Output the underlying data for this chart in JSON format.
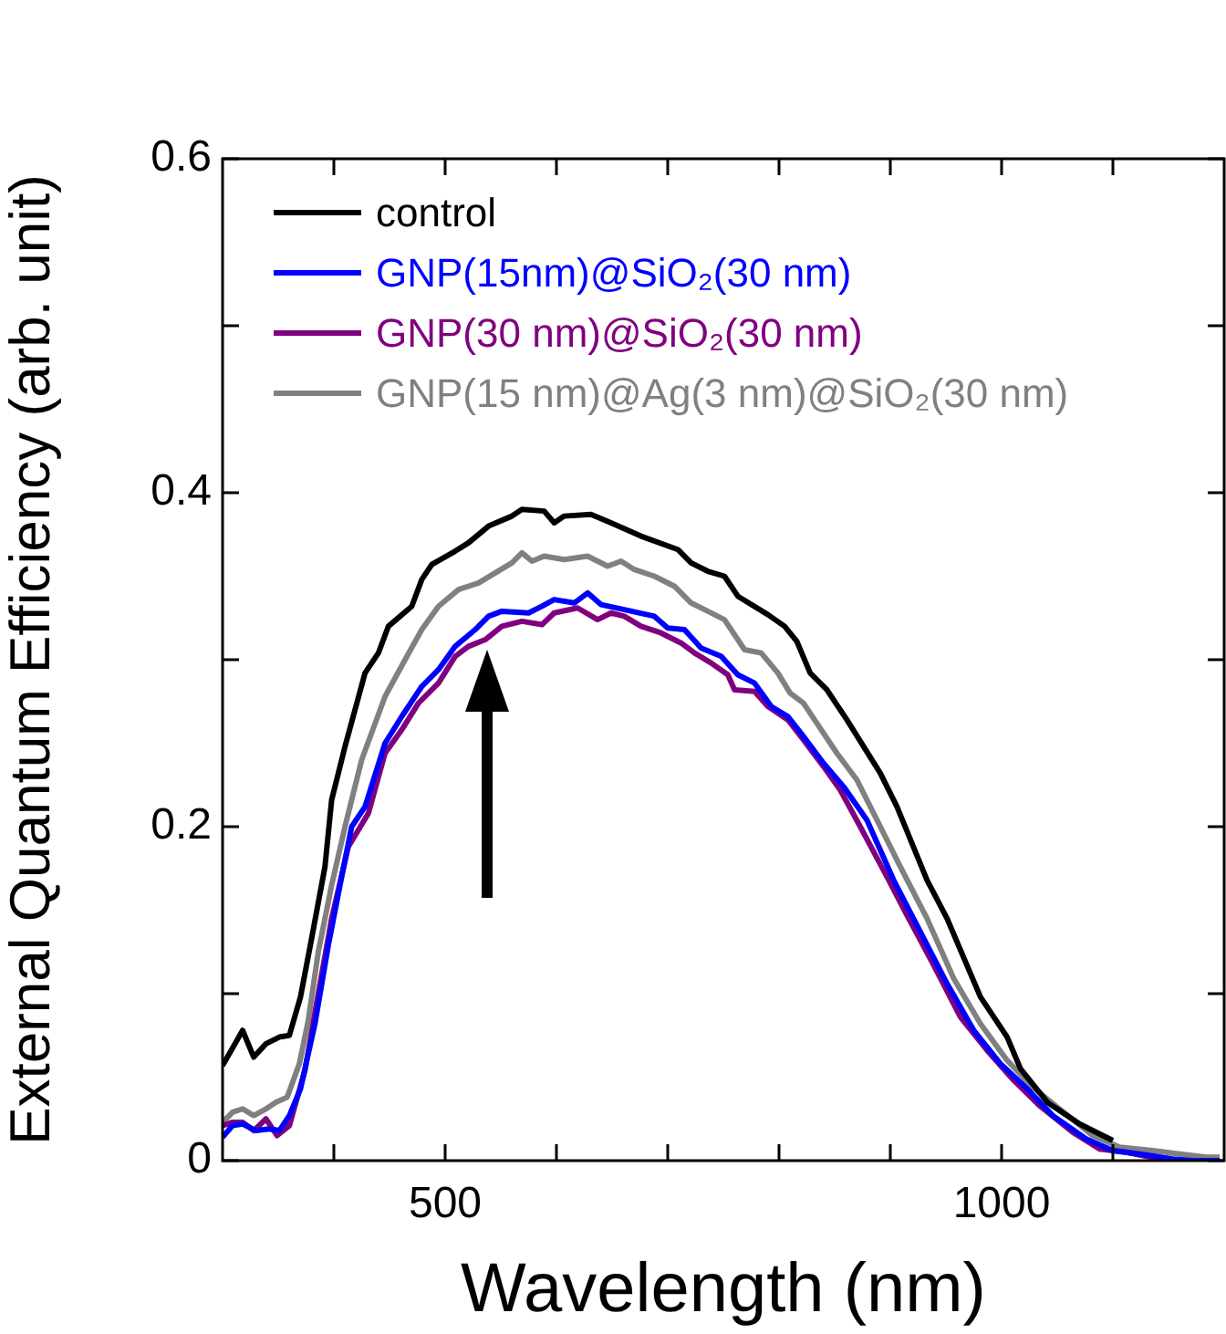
{
  "chart_data": {
    "type": "line",
    "xlabel": "Wavelength (nm)",
    "ylabel": "External Quantum Efficiency (arb. unit)",
    "xlim": [
      300,
      1200
    ],
    "ylim": [
      0,
      0.6
    ],
    "xticks": [
      {
        "value": 400,
        "label": null
      },
      500,
      {
        "value": 600,
        "label": null
      },
      {
        "value": 700,
        "label": null
      },
      {
        "value": 800,
        "label": null
      },
      {
        "value": 900,
        "label": null
      },
      1000,
      {
        "value": 1100,
        "label": null
      }
    ],
    "yticks": [
      0,
      {
        "value": 0.1,
        "label": null
      },
      0.2,
      {
        "value": 0.3,
        "label": null
      },
      0.4,
      {
        "value": 0.5,
        "label": null
      },
      0.6
    ],
    "grid": false,
    "legend": "top left",
    "marker": "none",
    "line_style": "solid",
    "series": [
      {
        "name": "control",
        "color": "#000000",
        "x": [
          300,
          318,
          328,
          339,
          351,
          360,
          370,
          380,
          392,
          398,
          410,
          428,
          440,
          449,
          470,
          479,
          488,
          509,
          521,
          539,
          560,
          569,
          589,
          598,
          607,
          631,
          649,
          676,
          709,
          721,
          736,
          751,
          763,
          790,
          805,
          816,
          828,
          843,
          861,
          876,
          891,
          906,
          933,
          951,
          981,
          1005,
          1017,
          1041,
          1070,
          1100
        ],
        "values": [
          0.057,
          0.078,
          0.062,
          0.07,
          0.074,
          0.075,
          0.098,
          0.133,
          0.176,
          0.216,
          0.248,
          0.292,
          0.304,
          0.32,
          0.332,
          0.348,
          0.357,
          0.365,
          0.37,
          0.38,
          0.386,
          0.39,
          0.389,
          0.382,
          0.386,
          0.387,
          0.382,
          0.374,
          0.366,
          0.358,
          0.353,
          0.35,
          0.338,
          0.327,
          0.32,
          0.311,
          0.292,
          0.282,
          0.264,
          0.248,
          0.232,
          0.212,
          0.168,
          0.145,
          0.098,
          0.074,
          0.055,
          0.035,
          0.022,
          0.012
        ]
      },
      {
        "name": "GNP(15nm)@SiO₂(30 nm)",
        "color": "#0000ff",
        "x": [
          300,
          309,
          318,
          330,
          342,
          351,
          360,
          370,
          383,
          395,
          407,
          416,
          428,
          446,
          461,
          479,
          494,
          509,
          527,
          539,
          551,
          575,
          587,
          598,
          616,
          628,
          640,
          661,
          688,
          700,
          715,
          730,
          748,
          763,
          778,
          793,
          808,
          822,
          840,
          858,
          879,
          903,
          927,
          951,
          975,
          999,
          1023,
          1046,
          1076,
          1100,
          1124,
          1154,
          1172,
          1196
        ],
        "values": [
          0.014,
          0.021,
          0.022,
          0.018,
          0.019,
          0.018,
          0.027,
          0.043,
          0.082,
          0.129,
          0.17,
          0.2,
          0.212,
          0.25,
          0.266,
          0.284,
          0.294,
          0.308,
          0.318,
          0.326,
          0.329,
          0.328,
          0.332,
          0.336,
          0.334,
          0.34,
          0.333,
          0.33,
          0.326,
          0.319,
          0.318,
          0.307,
          0.302,
          0.291,
          0.286,
          0.272,
          0.266,
          0.254,
          0.238,
          0.224,
          0.204,
          0.168,
          0.137,
          0.106,
          0.078,
          0.058,
          0.043,
          0.027,
          0.013,
          0.006,
          0.004,
          0.001,
          0,
          0
        ]
      },
      {
        "name": "GNP(30 nm)@SiO₂(30 nm)",
        "color": "#800080",
        "x": [
          300,
          309,
          318,
          328,
          339,
          349,
          360,
          374,
          386,
          398,
          413,
          431,
          446,
          461,
          476,
          494,
          509,
          521,
          536,
          551,
          569,
          587,
          598,
          619,
          637,
          649,
          661,
          676,
          694,
          712,
          724,
          739,
          754,
          760,
          778,
          790,
          808,
          822,
          840,
          855,
          873,
          897,
          915,
          939,
          963,
          987,
          1011,
          1034,
          1064,
          1088,
          1112,
          1142
        ],
        "values": [
          0.021,
          0.023,
          0.023,
          0.018,
          0.025,
          0.015,
          0.021,
          0.054,
          0.1,
          0.145,
          0.188,
          0.208,
          0.244,
          0.258,
          0.274,
          0.286,
          0.302,
          0.308,
          0.312,
          0.32,
          0.323,
          0.321,
          0.328,
          0.331,
          0.324,
          0.328,
          0.326,
          0.32,
          0.316,
          0.31,
          0.304,
          0.298,
          0.291,
          0.282,
          0.281,
          0.272,
          0.264,
          0.252,
          0.236,
          0.222,
          0.2,
          0.17,
          0.147,
          0.117,
          0.086,
          0.066,
          0.048,
          0.033,
          0.017,
          0.007,
          0.005,
          0.001
        ]
      },
      {
        "name": "GNP(15 nm)@Ag(3 nm)@SiO₂(30 nm)",
        "color": "#808080",
        "x": [
          300,
          309,
          318,
          328,
          339,
          348,
          358,
          369,
          377,
          386,
          398,
          410,
          425,
          446,
          464,
          479,
          494,
          512,
          530,
          545,
          560,
          569,
          578,
          589,
          607,
          628,
          646,
          658,
          670,
          688,
          706,
          721,
          736,
          751,
          769,
          784,
          799,
          810,
          822,
          834,
          852,
          870,
          888,
          909,
          933,
          957,
          981,
          1005,
          1028,
          1052,
          1082,
          1106,
          1136,
          1160,
          1184,
          1196
        ],
        "values": [
          0.023,
          0.029,
          0.031,
          0.027,
          0.031,
          0.035,
          0.038,
          0.058,
          0.084,
          0.125,
          0.165,
          0.2,
          0.24,
          0.278,
          0.3,
          0.318,
          0.332,
          0.342,
          0.346,
          0.352,
          0.358,
          0.364,
          0.359,
          0.362,
          0.36,
          0.362,
          0.356,
          0.359,
          0.354,
          0.35,
          0.344,
          0.334,
          0.329,
          0.324,
          0.306,
          0.304,
          0.292,
          0.28,
          0.274,
          0.262,
          0.244,
          0.228,
          0.204,
          0.176,
          0.145,
          0.109,
          0.082,
          0.06,
          0.044,
          0.031,
          0.015,
          0.008,
          0.006,
          0.004,
          0.002,
          0.002
        ]
      }
    ]
  }
}
